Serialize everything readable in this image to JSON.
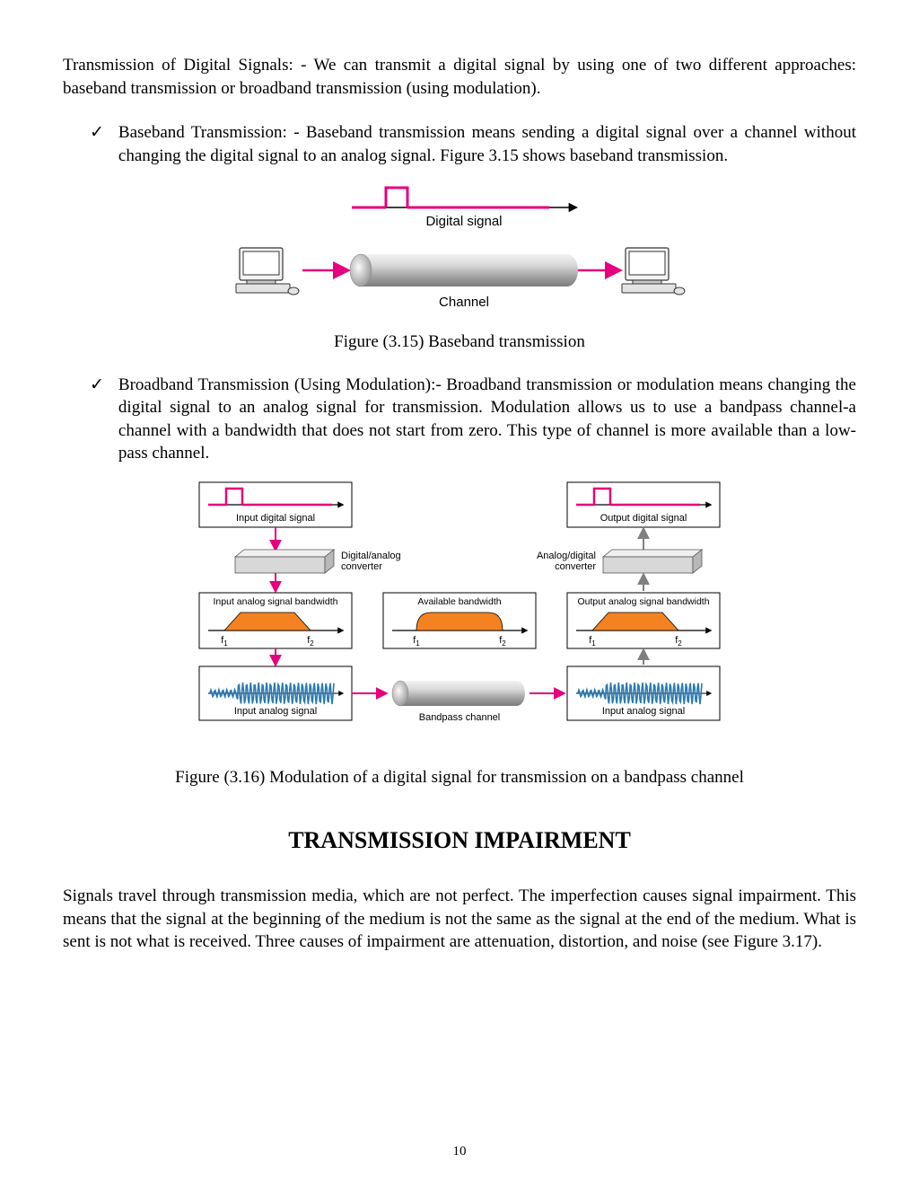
{
  "intro": "Transmission of Digital Signals: - We can transmit a digital signal by using one of two different approaches: baseband transmission or broadband transmission (using modulation).",
  "bullets": {
    "baseband": "Baseband Transmission: - Baseband transmission means sending a digital signal over a channel without changing the digital signal to an analog signal. Figure 3.15 shows baseband transmission.",
    "broadband": "Broadband Transmission (Using Modulation):- Broadband transmission or modulation means changing the digital signal to an analog signal for transmission. Modulation allows us to use a bandpass channel-a channel with a bandwidth that does not start from zero. This type of channel is more available than a low-pass channel."
  },
  "fig315": {
    "caption": "Figure (3.15) Baseband transmission",
    "labels": {
      "digital_signal": "Digital signal",
      "channel": "Channel"
    },
    "colors": {
      "pulse": "#e6007e",
      "arrow": "#e6007e",
      "axis": "#000000",
      "cylinder_light": "#e8e8e8",
      "cylinder_mid": "#cfcfcf",
      "cylinder_dark": "#9a9a9a",
      "computer_stroke": "#333333",
      "computer_fill": "#f4f4f4"
    }
  },
  "fig316": {
    "caption": "Figure (3.16) Modulation of a digital signal for transmission on a bandpass channel",
    "labels": {
      "input_digital": "Input digital signal",
      "output_digital": "Output digital signal",
      "da_conv": "Digital/analog\nconverter",
      "ad_conv": "Analog/digital\nconverter",
      "input_bw": "Input analog signal bandwidth",
      "avail_bw": "Available bandwidth",
      "output_bw": "Output analog signal bandwidth",
      "f1": "f",
      "f1_sub": "1",
      "f2": "f",
      "f2_sub": "2",
      "bandpass": "Bandpass channel",
      "input_analog": "Input analog signal"
    },
    "colors": {
      "pulse": "#e6007e",
      "arrow_pink": "#e6007e",
      "arrow_gray": "#808080",
      "axis": "#000000",
      "box_border": "#000000",
      "box_fill": "#ffffff",
      "slab_top": "#f0f0f0",
      "slab_side": "#b8b8b8",
      "slab_front": "#d8d8d8",
      "trap_fill": "#f58220",
      "wave": "#2a7ab0",
      "cylinder_light": "#e8e8e8",
      "cylinder_mid": "#cfcfcf",
      "cylinder_dark": "#9a9a9a"
    }
  },
  "section_heading": "TRANSMISSION IMPAIRMENT",
  "impairment_para": "Signals travel through transmission media, which are not perfect. The imperfection causes signal impairment. This means that the signal at the beginning of the medium is not the same as the signal at the  end of the medium. What is sent is not what is received. Three  causes of impairment are attenuation, distortion,  and noise (see Figure 3.17).",
  "page_number": "10"
}
